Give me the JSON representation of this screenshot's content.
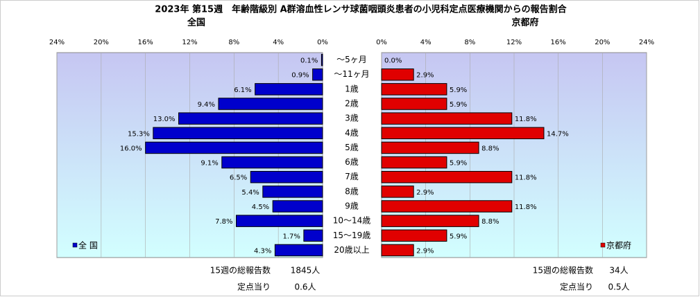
{
  "title": "2023年 第15週　年齢階級別 A群溶血性レンサ球菌咽頭炎患者の小児科定点医療機関からの報告割合",
  "categories": [
    "～5ヶ月",
    "～11ヶ月",
    "1歳",
    "2歳",
    "3歳",
    "4歳",
    "5歳",
    "6歳",
    "7歳",
    "8歳",
    "9歳",
    "10～14歳",
    "15～19歳",
    "20歳以上"
  ],
  "chart_data": [
    {
      "type": "bar",
      "orientation": "horizontal",
      "reversed": true,
      "subtitle": "全国",
      "xlim": [
        0,
        24
      ],
      "xticks": [
        {
          "value": 0,
          "label": "0%"
        },
        {
          "value": 4,
          "label": "4%"
        },
        {
          "value": 8,
          "label": "8%"
        },
        {
          "value": 12,
          "label": "12%"
        },
        {
          "value": 16,
          "label": "16%"
        },
        {
          "value": 20,
          "label": "20%"
        },
        {
          "value": 24,
          "label": "24%"
        }
      ],
      "grid": true,
      "legend": "lower-left",
      "series": [
        {
          "name": "全 国",
          "color": "#0000cc",
          "values": [
            0.1,
            0.9,
            6.1,
            9.4,
            13.0,
            15.3,
            16.0,
            9.1,
            6.5,
            5.4,
            4.5,
            7.8,
            1.7,
            4.3
          ],
          "value_labels": [
            "0.1%",
            "0.9%",
            "6.1%",
            "9.4%",
            "13.0%",
            "15.3%",
            "16.0%",
            "9.1%",
            "6.5%",
            "5.4%",
            "4.5%",
            "7.8%",
            "1.7%",
            "4.3%"
          ]
        }
      ],
      "notes": [
        {
          "label": "15週の総報告数",
          "value": "1845人"
        },
        {
          "label": "定点当り",
          "value": "0.6人"
        }
      ]
    },
    {
      "type": "bar",
      "orientation": "horizontal",
      "reversed": false,
      "subtitle": "京都府",
      "xlim": [
        0,
        24
      ],
      "xticks": [
        {
          "value": 0,
          "label": "0%"
        },
        {
          "value": 4,
          "label": "4%"
        },
        {
          "value": 8,
          "label": "8%"
        },
        {
          "value": 12,
          "label": "12%"
        },
        {
          "value": 16,
          "label": "16%"
        },
        {
          "value": 20,
          "label": "20%"
        },
        {
          "value": 24,
          "label": "24%"
        }
      ],
      "grid": true,
      "legend": "lower-right",
      "series": [
        {
          "name": "京都府",
          "color": "#e00000",
          "values": [
            0.0,
            2.9,
            5.9,
            5.9,
            11.8,
            14.7,
            8.8,
            5.9,
            11.8,
            2.9,
            11.8,
            8.8,
            5.9,
            2.9
          ],
          "value_labels": [
            "0.0%",
            "2.9%",
            "5.9%",
            "5.9%",
            "11.8%",
            "14.7%",
            "8.8%",
            "5.9%",
            "11.8%",
            "2.9%",
            "11.8%",
            "8.8%",
            "5.9%",
            "2.9%"
          ]
        }
      ],
      "notes": [
        {
          "label": "15週の総報告数",
          "value": "34人"
        },
        {
          "label": "定点当り",
          "value": "0.5人"
        }
      ]
    }
  ]
}
